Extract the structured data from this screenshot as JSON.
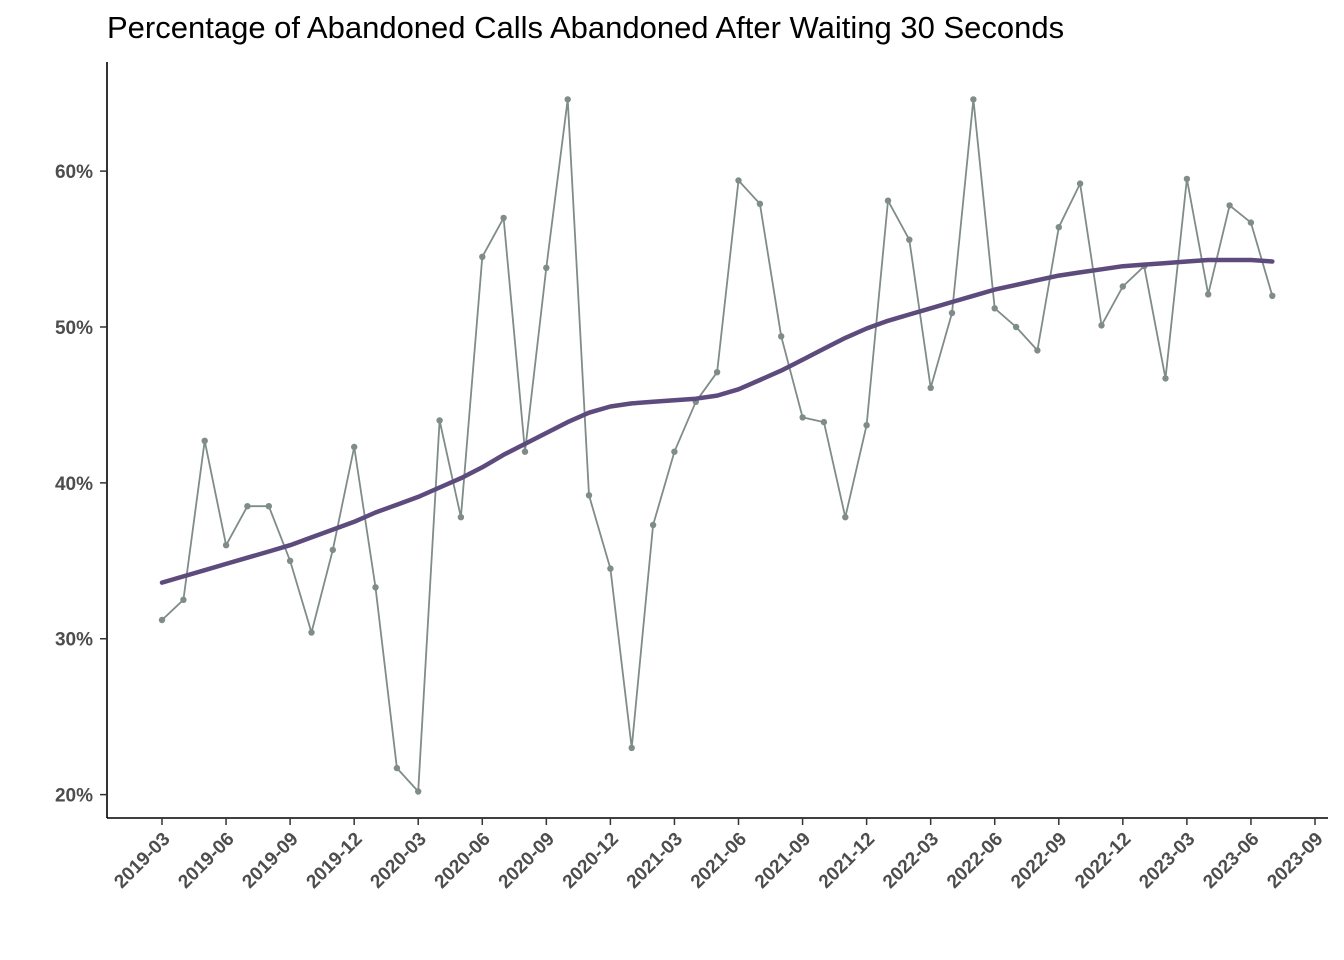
{
  "chart_data": {
    "type": "line",
    "title": "Percentage of Abandoned Calls Abandoned After Waiting 30 Seconds",
    "xlabel": "",
    "ylabel": "",
    "y_format": "percent",
    "ylim": [
      18.5,
      67
    ],
    "yticks": [
      20,
      30,
      40,
      50,
      60
    ],
    "ytick_labels": [
      "20%",
      "30%",
      "40%",
      "50%",
      "60%"
    ],
    "x_range": [
      "2019-03",
      "2023-09"
    ],
    "xtick_labels": [
      "2019-03",
      "2019-06",
      "2019-09",
      "2019-12",
      "2020-03",
      "2020-06",
      "2020-09",
      "2020-12",
      "2021-03",
      "2021-06",
      "2021-09",
      "2021-12",
      "2022-03",
      "2022-06",
      "2022-09",
      "2022-12",
      "2023-03",
      "2023-06",
      "2023-09"
    ],
    "grid": false,
    "legend": "none",
    "series": [
      {
        "color": "#7f8c8a",
        "x": [
          "2019-03",
          "2019-04",
          "2019-05",
          "2019-06",
          "2019-07",
          "2019-08",
          "2019-09",
          "2019-10",
          "2019-11",
          "2019-12",
          "2020-01",
          "2020-02",
          "2020-03",
          "2020-04",
          "2020-05",
          "2020-06",
          "2020-07",
          "2020-08",
          "2020-09",
          "2020-10",
          "2020-11",
          "2020-12",
          "2021-01",
          "2021-02",
          "2021-03",
          "2021-04",
          "2021-05",
          "2021-06",
          "2021-07",
          "2021-08",
          "2021-09",
          "2021-10",
          "2021-11",
          "2021-12",
          "2022-01",
          "2022-02",
          "2022-03",
          "2022-04",
          "2022-05",
          "2022-06",
          "2022-07",
          "2022-08",
          "2022-09",
          "2022-10",
          "2022-11",
          "2022-12",
          "2023-01",
          "2023-02",
          "2023-03",
          "2023-04",
          "2023-05",
          "2023-06",
          "2023-07"
        ],
        "values": [
          31.2,
          32.5,
          42.7,
          36.0,
          38.5,
          38.5,
          35.0,
          30.4,
          35.7,
          42.3,
          33.3,
          21.7,
          20.2,
          44.0,
          37.8,
          54.5,
          57.0,
          42.0,
          53.8,
          64.6,
          39.2,
          34.5,
          23.0,
          37.3,
          42.0,
          45.2,
          47.1,
          59.4,
          57.9,
          49.4,
          44.2,
          43.9,
          37.8,
          43.7,
          58.1,
          55.6,
          46.1,
          50.9,
          64.6,
          51.2,
          50.0,
          48.5,
          56.4,
          59.2,
          50.1,
          52.6,
          53.9,
          46.7,
          59.5,
          52.1,
          57.8,
          56.7,
          52.0
        ]
      },
      {
        "color": "#5e4b7d",
        "x": [
          "2019-03",
          "2019-04",
          "2019-05",
          "2019-06",
          "2019-07",
          "2019-08",
          "2019-09",
          "2019-10",
          "2019-11",
          "2019-12",
          "2020-01",
          "2020-02",
          "2020-03",
          "2020-04",
          "2020-05",
          "2020-06",
          "2020-07",
          "2020-08",
          "2020-09",
          "2020-10",
          "2020-11",
          "2020-12",
          "2021-01",
          "2021-02",
          "2021-03",
          "2021-04",
          "2021-05",
          "2021-06",
          "2021-07",
          "2021-08",
          "2021-09",
          "2021-10",
          "2021-11",
          "2021-12",
          "2022-01",
          "2022-02",
          "2022-03",
          "2022-04",
          "2022-05",
          "2022-06",
          "2022-07",
          "2022-08",
          "2022-09",
          "2022-10",
          "2022-11",
          "2022-12",
          "2023-01",
          "2023-02",
          "2023-03",
          "2023-04",
          "2023-05",
          "2023-06",
          "2023-07"
        ],
        "values": [
          33.6,
          34.0,
          34.4,
          34.8,
          35.2,
          35.6,
          36.0,
          36.5,
          37.0,
          37.5,
          38.1,
          38.6,
          39.1,
          39.7,
          40.3,
          41.0,
          41.8,
          42.5,
          43.2,
          43.9,
          44.5,
          44.9,
          45.1,
          45.2,
          45.3,
          45.4,
          45.6,
          46.0,
          46.6,
          47.2,
          47.9,
          48.6,
          49.3,
          49.9,
          50.4,
          50.8,
          51.2,
          51.6,
          52.0,
          52.4,
          52.7,
          53.0,
          53.3,
          53.5,
          53.7,
          53.9,
          54.0,
          54.1,
          54.2,
          54.3,
          54.3,
          54.3,
          54.2
        ]
      }
    ]
  }
}
